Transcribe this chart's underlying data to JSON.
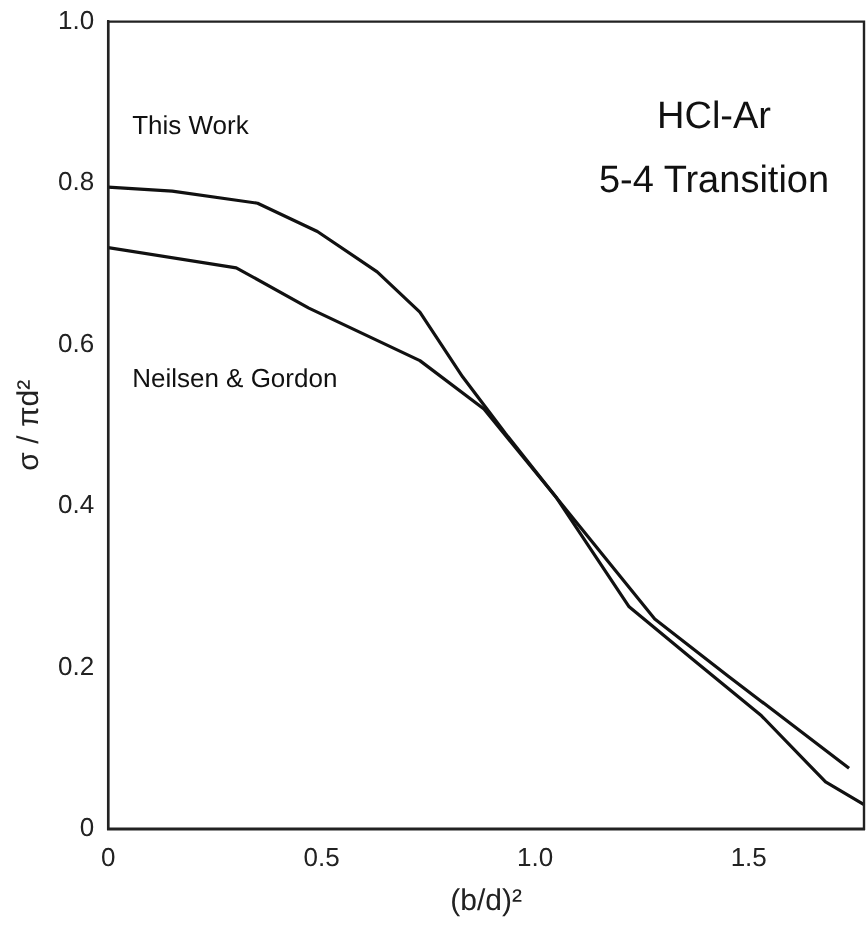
{
  "chart_data": {
    "type": "line",
    "xlabel": "(b/d)²",
    "ylabel": "σ / πd²",
    "annotations": [
      "HCl-Ar",
      "5-4 Transition"
    ],
    "xlim": [
      0,
      1.77
    ],
    "xticks": [
      0,
      {
        "value": 0.5,
        "label": "0.5"
      },
      {
        "value": 1,
        "label": "1.0"
      },
      1.5
    ],
    "ylim": [
      0,
      1.0
    ],
    "yticks": [
      0,
      0.2,
      0.4,
      0.6,
      0.8,
      {
        "value": 1,
        "label": "1.0"
      }
    ],
    "grid": false,
    "legend": false,
    "marker": "none",
    "line_style": "solid",
    "series": [
      {
        "name": "This Work",
        "color": "#111111",
        "x": [
          0,
          0.15,
          0.35,
          0.49,
          0.63,
          0.73,
          0.83,
          0.93,
          1.05,
          1.22,
          1.38,
          1.53,
          1.68,
          1.77
        ],
        "values": [
          0.795,
          0.79,
          0.775,
          0.74,
          0.69,
          0.64,
          0.56,
          0.49,
          0.41,
          0.275,
          0.205,
          0.14,
          0.058,
          0.03
        ]
      },
      {
        "name": "Neilsen & Gordon",
        "color": "#111111",
        "x": [
          0,
          0.3,
          0.47,
          0.73,
          0.88,
          1.05,
          1.28,
          1.45,
          1.735
        ],
        "values": [
          0.72,
          0.695,
          0.645,
          0.58,
          0.52,
          0.41,
          0.26,
          0.19,
          0.075
        ]
      }
    ]
  }
}
